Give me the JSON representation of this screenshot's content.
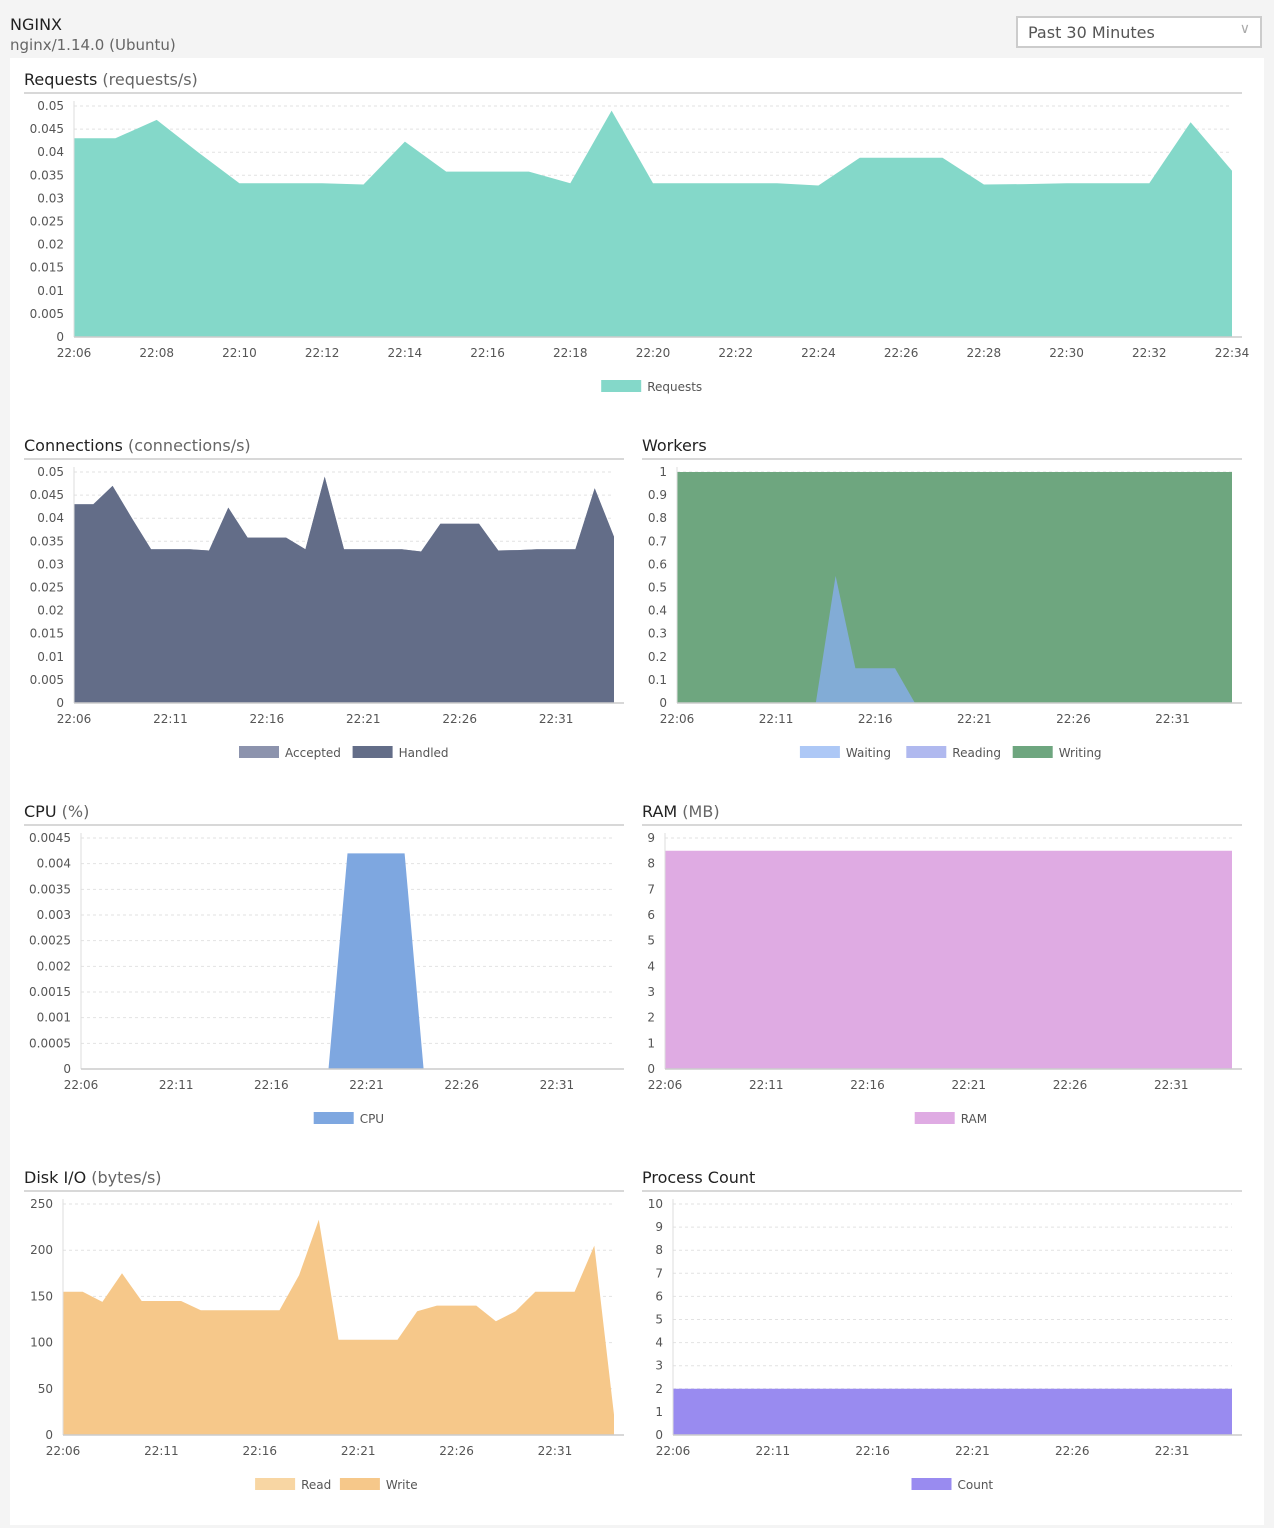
{
  "header": {
    "title": "NGINX",
    "subtitle": "nginx/1.14.0 (Ubuntu)",
    "time_range": "Past 30 Minutes",
    "chevron_icon": "chevron-down-icon"
  },
  "chart_data": [
    {
      "id": "requests",
      "type": "area",
      "title": "Requests",
      "unit": "(requests/s)",
      "xlim": [
        "22:06",
        "22:34"
      ],
      "x_ticks": [
        "22:06",
        "22:08",
        "22:10",
        "22:12",
        "22:14",
        "22:16",
        "22:18",
        "22:20",
        "22:22",
        "22:24",
        "22:26",
        "22:28",
        "22:30",
        "22:32",
        "22:34"
      ],
      "ylim": [
        0,
        0.05
      ],
      "y_ticks": [
        "0",
        "0.005",
        "0.01",
        "0.015",
        "0.02",
        "0.025",
        "0.03",
        "0.035",
        "0.04",
        "0.045",
        "0.05"
      ],
      "grid": true,
      "legend": "bottom",
      "series": [
        {
          "name": "Requests",
          "color": "#84d8c9",
          "x": [
            "22:06",
            "22:07",
            "22:08",
            "22:09",
            "22:10",
            "22:11",
            "22:12",
            "22:13",
            "22:14",
            "22:15",
            "22:16",
            "22:17",
            "22:18",
            "22:19",
            "22:20",
            "22:21",
            "22:22",
            "22:23",
            "22:24",
            "22:25",
            "22:26",
            "22:27",
            "22:28",
            "22:29",
            "22:30",
            "22:31",
            "22:32",
            "22:33",
            "22:34"
          ],
          "values": [
            0.043,
            0.043,
            0.047,
            0.04,
            0.0333,
            0.0333,
            0.0333,
            0.033,
            0.0423,
            0.0358,
            0.0358,
            0.0358,
            0.0333,
            0.049,
            0.0333,
            0.0333,
            0.0333,
            0.0333,
            0.0328,
            0.0388,
            0.0388,
            0.0388,
            0.033,
            0.0331,
            0.0333,
            0.0333,
            0.0333,
            0.0465,
            0.036
          ]
        }
      ]
    },
    {
      "id": "connections",
      "type": "area",
      "title": "Connections",
      "unit": "(connections/s)",
      "xlim": [
        "22:06",
        "22:34"
      ],
      "x_ticks": [
        "22:06",
        "22:11",
        "22:16",
        "22:21",
        "22:26",
        "22:31"
      ],
      "ylim": [
        0,
        0.05
      ],
      "y_ticks": [
        "0",
        "0.005",
        "0.01",
        "0.015",
        "0.02",
        "0.025",
        "0.03",
        "0.035",
        "0.04",
        "0.045",
        "0.05"
      ],
      "grid": true,
      "legend": "bottom",
      "series": [
        {
          "name": "Accepted",
          "color": "#8c93ad",
          "x": [
            "22:06",
            "22:07",
            "22:08",
            "22:09",
            "22:10",
            "22:11",
            "22:12",
            "22:13",
            "22:14",
            "22:15",
            "22:16",
            "22:17",
            "22:18",
            "22:19",
            "22:20",
            "22:21",
            "22:22",
            "22:23",
            "22:24",
            "22:25",
            "22:26",
            "22:27",
            "22:28",
            "22:29",
            "22:30",
            "22:31",
            "22:32",
            "22:33",
            "22:34"
          ],
          "values": [
            0.043,
            0.043,
            0.047,
            0.04,
            0.0333,
            0.0333,
            0.0333,
            0.033,
            0.0423,
            0.0358,
            0.0358,
            0.0358,
            0.0333,
            0.049,
            0.0333,
            0.0333,
            0.0333,
            0.0333,
            0.0328,
            0.0388,
            0.0388,
            0.0388,
            0.033,
            0.0331,
            0.0333,
            0.0333,
            0.0333,
            0.0465,
            0.036
          ]
        },
        {
          "name": "Handled",
          "color": "#636d88",
          "x": [
            "22:06",
            "22:07",
            "22:08",
            "22:09",
            "22:10",
            "22:11",
            "22:12",
            "22:13",
            "22:14",
            "22:15",
            "22:16",
            "22:17",
            "22:18",
            "22:19",
            "22:20",
            "22:21",
            "22:22",
            "22:23",
            "22:24",
            "22:25",
            "22:26",
            "22:27",
            "22:28",
            "22:29",
            "22:30",
            "22:31",
            "22:32",
            "22:33",
            "22:34"
          ],
          "values": [
            0.043,
            0.043,
            0.047,
            0.04,
            0.0333,
            0.0333,
            0.0333,
            0.033,
            0.0423,
            0.0358,
            0.0358,
            0.0358,
            0.0333,
            0.049,
            0.0333,
            0.0333,
            0.0333,
            0.0333,
            0.0328,
            0.0388,
            0.0388,
            0.0388,
            0.033,
            0.0331,
            0.0333,
            0.0333,
            0.0333,
            0.0465,
            0.036
          ]
        }
      ]
    },
    {
      "id": "workers",
      "type": "area",
      "title": "Workers",
      "unit": "",
      "xlim": [
        "22:06",
        "22:34"
      ],
      "x_ticks": [
        "22:06",
        "22:11",
        "22:16",
        "22:21",
        "22:26",
        "22:31"
      ],
      "ylim": [
        0,
        1
      ],
      "y_ticks": [
        "0",
        "0.1",
        "0.2",
        "0.3",
        "0.4",
        "0.5",
        "0.6",
        "0.7",
        "0.8",
        "0.9",
        "1"
      ],
      "grid": true,
      "legend": "bottom",
      "series": [
        {
          "name": "Writing",
          "color": "#6ea67f",
          "x": [
            "22:06",
            "22:34"
          ],
          "values": [
            1,
            1
          ]
        },
        {
          "name": "Reading",
          "color": "#b0b9ef",
          "x": [
            "22:06",
            "22:34"
          ],
          "values": [
            0,
            0
          ]
        },
        {
          "name": "Waiting",
          "color": "#adc8f6",
          "fill": "#82acd6",
          "x": [
            "22:06",
            "22:13",
            "22:14",
            "22:15",
            "22:17",
            "22:18",
            "22:34"
          ],
          "values": [
            0,
            0,
            0.55,
            0.15,
            0.15,
            0,
            0
          ]
        }
      ]
    },
    {
      "id": "cpu",
      "type": "area",
      "title": "CPU",
      "unit": "(%)",
      "xlim": [
        "22:06",
        "22:34"
      ],
      "x_ticks": [
        "22:06",
        "22:11",
        "22:16",
        "22:21",
        "22:26",
        "22:31"
      ],
      "ylim": [
        0,
        0.0045
      ],
      "y_ticks": [
        "0",
        "0.0005",
        "0.001",
        "0.0015",
        "0.002",
        "0.0025",
        "0.003",
        "0.0035",
        "0.004",
        "0.0045"
      ],
      "grid": true,
      "legend": "bottom",
      "series": [
        {
          "name": "CPU",
          "color": "#7ea7e0",
          "x": [
            "22:06",
            "22:19",
            "22:20",
            "22:23",
            "22:24",
            "22:34"
          ],
          "values": [
            0,
            0,
            0.0042,
            0.0042,
            0,
            0
          ]
        }
      ]
    },
    {
      "id": "ram",
      "type": "area",
      "title": "RAM",
      "unit": "(MB)",
      "xlim": [
        "22:06",
        "22:34"
      ],
      "x_ticks": [
        "22:06",
        "22:11",
        "22:16",
        "22:21",
        "22:26",
        "22:31"
      ],
      "ylim": [
        0,
        9
      ],
      "y_ticks": [
        "0",
        "1",
        "2",
        "3",
        "4",
        "5",
        "6",
        "7",
        "8",
        "9"
      ],
      "grid": true,
      "legend": "bottom",
      "series": [
        {
          "name": "RAM",
          "color": "#dfabe3",
          "x": [
            "22:06",
            "22:34"
          ],
          "values": [
            8.5,
            8.5
          ]
        }
      ]
    },
    {
      "id": "disk",
      "type": "area",
      "title": "Disk I/O",
      "unit": "(bytes/s)",
      "xlim": [
        "22:06",
        "22:34"
      ],
      "x_ticks": [
        "22:06",
        "22:11",
        "22:16",
        "22:21",
        "22:26",
        "22:31"
      ],
      "ylim": [
        0,
        250
      ],
      "y_ticks": [
        "0",
        "50",
        "100",
        "150",
        "200",
        "250"
      ],
      "grid": true,
      "legend": "bottom",
      "series": [
        {
          "name": "Read",
          "color": "#f8d6a3",
          "x": [
            "22:06",
            "22:34"
          ],
          "values": [
            0,
            0
          ]
        },
        {
          "name": "Write",
          "color": "#f6c88a",
          "x": [
            "22:06",
            "22:07",
            "22:08",
            "22:09",
            "22:10",
            "22:11",
            "22:12",
            "22:13",
            "22:14",
            "22:15",
            "22:16",
            "22:17",
            "22:18",
            "22:19",
            "22:20",
            "22:21",
            "22:22",
            "22:23",
            "22:24",
            "22:25",
            "22:26",
            "22:27",
            "22:28",
            "22:29",
            "22:30",
            "22:31",
            "22:32",
            "22:33",
            "22:34"
          ],
          "values": [
            155,
            155,
            144,
            175,
            145,
            145,
            145,
            135,
            135,
            135,
            135,
            135,
            173,
            233,
            103,
            103,
            103,
            103,
            134,
            140,
            140,
            140,
            123,
            134,
            155,
            155,
            155,
            205,
            22
          ]
        }
      ]
    },
    {
      "id": "process",
      "type": "area",
      "title": "Process Count",
      "unit": "",
      "xlim": [
        "22:06",
        "22:34"
      ],
      "x_ticks": [
        "22:06",
        "22:11",
        "22:16",
        "22:21",
        "22:26",
        "22:31"
      ],
      "ylim": [
        0,
        10
      ],
      "y_ticks": [
        "0",
        "1",
        "2",
        "3",
        "4",
        "5",
        "6",
        "7",
        "8",
        "9",
        "10"
      ],
      "grid": true,
      "legend": "bottom",
      "series": [
        {
          "name": "Count",
          "color": "#998bf0",
          "x": [
            "22:06",
            "22:34"
          ],
          "values": [
            2,
            2
          ]
        }
      ]
    }
  ]
}
